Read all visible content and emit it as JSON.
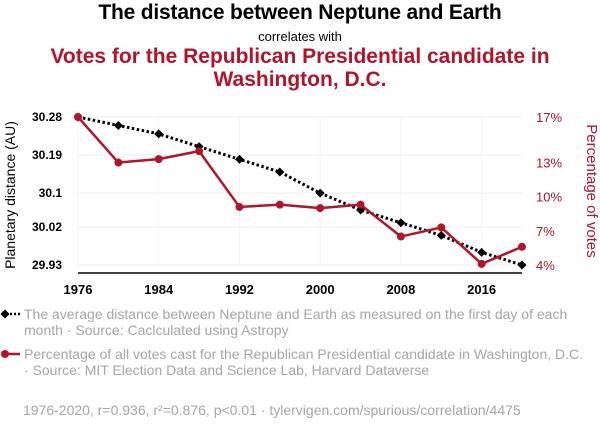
{
  "header": {
    "title_primary": "The distance between Neptune and Earth",
    "connector": "correlates with",
    "title_secondary": "Votes for the Republican Presidential candidate in Washington, D.C."
  },
  "chart_data": {
    "type": "line",
    "x": [
      1976,
      1980,
      1984,
      1988,
      1992,
      1996,
      2000,
      2004,
      2008,
      2012,
      2016,
      2020
    ],
    "series": [
      {
        "name": "The average distance between Neptune and Earth",
        "axis": "left",
        "color": "#000000",
        "style": "dotted",
        "marker": "diamond",
        "values": [
          30.28,
          30.26,
          30.24,
          30.21,
          30.18,
          30.15,
          30.1,
          30.06,
          30.03,
          30.0,
          29.96,
          29.93
        ]
      },
      {
        "name": "Percentage of votes",
        "axis": "right",
        "color": "#b0152b",
        "style": "solid",
        "marker": "circle",
        "values": [
          17.0,
          13.0,
          13.3,
          14.0,
          9.1,
          9.3,
          9.0,
          9.3,
          6.5,
          7.3,
          4.1,
          5.6
        ]
      }
    ],
    "xticks": [
      "1976",
      "1984",
      "1992",
      "2000",
      "2008",
      "2016"
    ],
    "xtick_values": [
      1976,
      1984,
      1992,
      2000,
      2008,
      2016
    ],
    "xlim": [
      1976,
      2020
    ],
    "yticks_left": [
      "30.28",
      "30.19",
      "30.1",
      "30.02",
      "29.93"
    ],
    "ytick_values_left": [
      30.28,
      30.19,
      30.1,
      30.02,
      29.93
    ],
    "ylim_left": [
      29.93,
      30.28
    ],
    "ylabel_left": "Planetary distance (AU)",
    "yticks_right": [
      "17%",
      "13%",
      "10%",
      "7%",
      "4%"
    ],
    "ytick_values_right": [
      17,
      13,
      10,
      7,
      4
    ],
    "ylim_right": [
      4,
      17
    ],
    "ylabel_right": "Percentage of votes",
    "grid": true
  },
  "legend": {
    "items": [
      {
        "text": "The average distance between Neptune and Earth as measured on the first day of each month · Source: Caclculated using Astropy"
      },
      {
        "text": "Percentage of all votes cast for the Republican Presidential candidate in Washington, D.C. · Source: MIT Election Data and Science Lab, Harvard Dataverse"
      }
    ]
  },
  "footer": {
    "text": "1976-2020, r=0.936, r²=0.876, p<0.01 · tylervigen.com/spurious/correlation/4475"
  },
  "colors": {
    "accent": "#b0152b",
    "primary": "#000000",
    "muted": "#a6a6a6",
    "grid": "#eeeeee"
  }
}
